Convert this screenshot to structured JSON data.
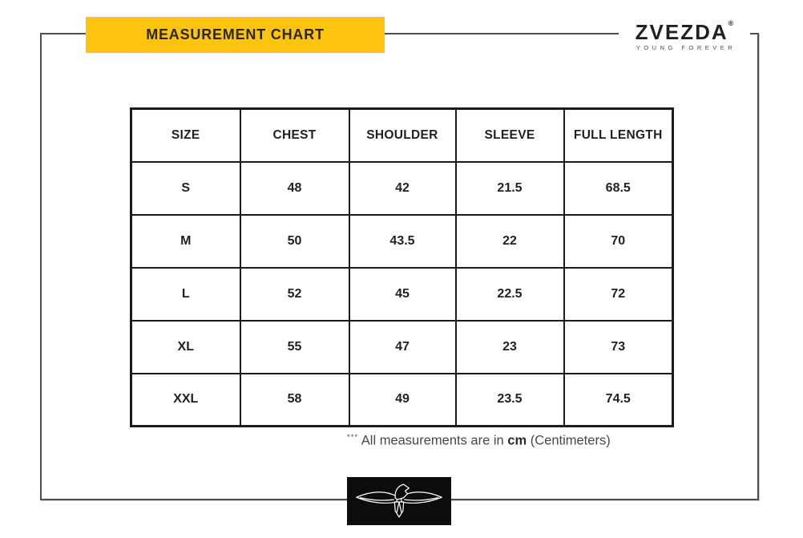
{
  "banner": {
    "title": "MEASUREMENT CHART"
  },
  "brand": {
    "name": "ZVEZDA",
    "registered": "®",
    "tagline": "YOUNG FOREVER"
  },
  "chart_data": {
    "type": "table",
    "title": "MEASUREMENT CHART",
    "columns": [
      "SIZE",
      "CHEST",
      "SHOULDER",
      "SLEEVE",
      "FULL LENGTH"
    ],
    "rows": [
      [
        "S",
        48,
        42,
        21.5,
        68.5
      ],
      [
        "M",
        50,
        43.5,
        22,
        70
      ],
      [
        "L",
        52,
        45,
        22.5,
        72
      ],
      [
        "XL",
        55,
        47,
        23,
        73
      ],
      [
        "XXL",
        58,
        49,
        23.5,
        74.5
      ]
    ],
    "unit": "cm"
  },
  "footnote": {
    "stars": "***",
    "text": "All measurements are in",
    "unit": "cm",
    "suffix": "(Centimeters)"
  },
  "icons": {
    "eagle": "eagle-icon"
  },
  "colors": {
    "banner_bg": "#FCC40D",
    "text_dark": "#231F20",
    "frame_gray": "#4F4F4F",
    "table_border": "#1B1B1B",
    "footnote_gray": "#48484A",
    "emblem_bg": "#0C0C0C"
  }
}
